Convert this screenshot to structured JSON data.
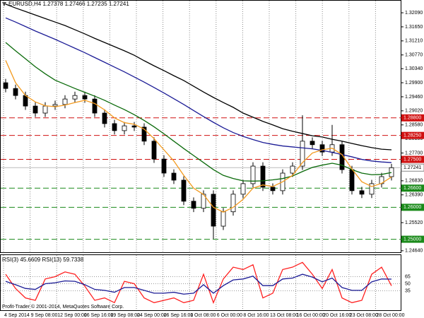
{
  "chart_data": [
    {
      "type": "candlestick",
      "title": "EURUSD,H4 1.27378 1.27466 1.27235 1.27241",
      "xticks": [
        "4 Sep 2014",
        "9 Sep 08:00",
        "12 Sep 00:00",
        "16 Sep 16:00",
        "19 Sep 08:00",
        "24 Sep 00:00",
        "26 Sep 16:00",
        "1 Oct 08:00",
        "6 Oct 00:00",
        "8 Oct 16:00",
        "13 Oct 08:00",
        "16 Oct 00:00",
        "20 Oct 16:00",
        "23 Oct 08:00",
        "28 Oct 00:00"
      ],
      "open": [
        1.299,
        1.2972,
        1.295,
        1.2917,
        1.2895,
        1.2917,
        1.2922,
        1.2939,
        1.295,
        1.2939,
        1.2895,
        1.2862,
        1.284,
        1.2855,
        1.2851,
        1.2807,
        1.2751,
        1.2707,
        1.2685,
        1.2619,
        1.2597,
        1.2641,
        1.2541,
        1.2586,
        1.2641,
        1.2674,
        1.2729,
        1.2663,
        1.2652,
        1.2707,
        1.2729,
        1.2807,
        1.2796,
        1.2773,
        1.2796,
        1.2718,
        1.2652,
        1.2641,
        1.2674,
        1.2696
      ],
      "high": [
        1.3002,
        1.2984,
        1.2962,
        1.2929,
        1.2929,
        1.2934,
        1.2951,
        1.2962,
        1.2962,
        1.2951,
        1.2907,
        1.2874,
        1.2867,
        1.2867,
        1.2863,
        1.2819,
        1.2763,
        1.2719,
        1.2697,
        1.2631,
        1.2653,
        1.2653,
        1.2598,
        1.2653,
        1.2686,
        1.2741,
        1.2741,
        1.2675,
        1.2719,
        1.2741,
        1.2888,
        1.2819,
        1.2808,
        1.2858,
        1.2808,
        1.273,
        1.2664,
        1.2686,
        1.2708,
        1.2736
      ],
      "low": [
        1.296,
        1.2938,
        1.2905,
        1.2883,
        1.2883,
        1.2905,
        1.291,
        1.2927,
        1.2927,
        1.2883,
        1.285,
        1.2828,
        1.2828,
        1.2839,
        1.2795,
        1.2739,
        1.2695,
        1.2673,
        1.2607,
        1.2585,
        1.2585,
        1.2501,
        1.2529,
        1.2574,
        1.2629,
        1.2662,
        1.2651,
        1.264,
        1.264,
        1.2695,
        1.2717,
        1.2784,
        1.2761,
        1.2761,
        1.2706,
        1.264,
        1.2629,
        1.2629,
        1.2662,
        1.2684
      ],
      "close": [
        1.2972,
        1.295,
        1.2917,
        1.2895,
        1.2917,
        1.2922,
        1.2939,
        1.295,
        1.2939,
        1.2895,
        1.2862,
        1.284,
        1.2855,
        1.2851,
        1.2807,
        1.2751,
        1.2707,
        1.2685,
        1.2619,
        1.2597,
        1.2641,
        1.2541,
        1.2586,
        1.2641,
        1.2674,
        1.2729,
        1.2663,
        1.2652,
        1.2707,
        1.2729,
        1.2807,
        1.2796,
        1.2773,
        1.2796,
        1.2718,
        1.2652,
        1.2641,
        1.2674,
        1.2696,
        1.2724
      ],
      "series": [
        {
          "color": "#000000",
          "values": [
            1.3236,
            1.3224,
            1.3213,
            1.3202,
            1.3191,
            1.318,
            1.3169,
            1.3156,
            1.3143,
            1.3129,
            1.3116,
            1.3103,
            1.309,
            1.3076,
            1.3059,
            1.3043,
            1.3028,
            1.3012,
            1.2997,
            1.2979,
            1.2961,
            1.2944,
            1.2928,
            1.2913,
            1.2895,
            1.2882,
            1.2869,
            1.2858,
            1.2846,
            1.2838,
            1.2831,
            1.2824,
            1.282,
            1.2813,
            1.2807,
            1.28,
            1.2793,
            1.2787,
            1.2782,
            1.278
          ]
        },
        {
          "color": "#1c1c96",
          "values": [
            1.3193,
            1.318,
            1.3166,
            1.3152,
            1.3139,
            1.3126,
            1.3112,
            1.3098,
            1.3084,
            1.3069,
            1.3054,
            1.3039,
            1.3024,
            1.3008,
            1.2992,
            1.2975,
            1.2958,
            1.294,
            1.2922,
            1.2903,
            1.2884,
            1.2866,
            1.2849,
            1.2834,
            1.2822,
            1.2812,
            1.2803,
            1.2797,
            1.2792,
            1.2789,
            1.2786,
            1.2783,
            1.2778,
            1.2772,
            1.2765,
            1.2758,
            1.275,
            1.2745,
            1.2742,
            1.274
          ]
        },
        {
          "color": "#0a6a0a",
          "values": [
            1.3116,
            1.309,
            1.3065,
            1.304,
            1.3018,
            1.2998,
            1.2985,
            1.2972,
            1.296,
            1.2948,
            1.2935,
            1.292,
            1.2906,
            1.289,
            1.2872,
            1.2852,
            1.283,
            1.2807,
            1.2784,
            1.2762,
            1.274,
            1.2718,
            1.27,
            1.269,
            1.2683,
            1.2682,
            1.2683,
            1.2686,
            1.269,
            1.2698,
            1.2712,
            1.2725,
            1.2732,
            1.2738,
            1.2732,
            1.2718,
            1.2707,
            1.2702,
            1.2703,
            1.2709
          ]
        },
        {
          "color": "#f39a1e",
          "values": [
            1.306,
            1.299,
            1.295,
            1.293,
            1.2918,
            1.2915,
            1.292,
            1.2928,
            1.2935,
            1.2925,
            1.2905,
            1.288,
            1.2865,
            1.286,
            1.2845,
            1.2815,
            1.278,
            1.2745,
            1.27,
            1.266,
            1.264,
            1.26,
            1.2585,
            1.26,
            1.2625,
            1.266,
            1.267,
            1.2665,
            1.268,
            1.27,
            1.274,
            1.277,
            1.278,
            1.2785,
            1.2765,
            1.272,
            1.268,
            1.2665,
            1.2675,
            1.2695
          ]
        }
      ],
      "ylim": [
        1.2457,
        1.3249
      ],
      "yticks": [
        {
          "value": 1.3209,
          "label": "1.32090"
        },
        {
          "value": 1.3165,
          "label": "1.31650"
        },
        {
          "value": 1.3121,
          "label": "1.31210"
        },
        {
          "value": 1.3077,
          "label": "1.30770"
        },
        {
          "value": 1.3034,
          "label": "1.30340"
        },
        {
          "value": 1.299,
          "label": "1.29900"
        },
        {
          "value": 1.2946,
          "label": "1.29460"
        },
        {
          "value": 1.2902,
          "label": "1.29020"
        },
        {
          "value": 1.2858,
          "label": "1.28580"
        },
        {
          "value": 1.2815,
          "label": "1.28150"
        },
        {
          "value": 1.277,
          "label": "1.27700"
        },
        {
          "value": 1.2683,
          "label": "1.26830"
        },
        {
          "value": 1.2639,
          "label": "1.26390"
        },
        {
          "value": 1.2552,
          "label": "1.25520"
        },
        {
          "value": 1.2464,
          "label": "1.24640"
        }
      ],
      "levels": [
        {
          "value": 1.288,
          "label": "1.28800",
          "color": "#d01010"
        },
        {
          "value": 1.2825,
          "label": "1.28250",
          "color": "#d01010"
        },
        {
          "value": 1.275,
          "label": "1.27500",
          "color": "#d01010"
        },
        {
          "value": 1.266,
          "label": "1.26600",
          "color": "#1a8a1a"
        },
        {
          "value": 1.26,
          "label": "1.26000",
          "color": "#1a8a1a"
        },
        {
          "value": 1.25,
          "label": "1.25000",
          "color": "#1a8a1a"
        }
      ],
      "current_price": {
        "value": 1.27241,
        "label": "1.27241"
      }
    },
    {
      "type": "line",
      "title": "RSI(3) 45.6609 RSI(13) 59.7338",
      "copyright": "Profit-Trader © 2001-2014, MetaQuotes Software Corp.",
      "ylim": [
        0,
        100
      ],
      "yticks": [
        35,
        50,
        65
      ],
      "series": [
        {
          "color": "#ff2020",
          "values": [
            70,
            40,
            20,
            15,
            60,
            65,
            75,
            70,
            45,
            15,
            20,
            10,
            55,
            50,
            20,
            10,
            15,
            20,
            10,
            15,
            70,
            10,
            60,
            85,
            80,
            90,
            20,
            30,
            80,
            85,
            95,
            70,
            40,
            80,
            20,
            10,
            15,
            70,
            85,
            45.6609
          ]
        },
        {
          "color": "#1c1c96",
          "values": [
            55,
            48,
            40,
            38,
            50,
            52,
            56,
            55,
            48,
            38,
            36,
            32,
            42,
            42,
            36,
            30,
            30,
            32,
            28,
            30,
            48,
            30,
            46,
            58,
            60,
            66,
            46,
            46,
            60,
            62,
            70,
            64,
            54,
            62,
            42,
            36,
            36,
            54,
            60,
            59.7338
          ]
        }
      ]
    }
  ]
}
